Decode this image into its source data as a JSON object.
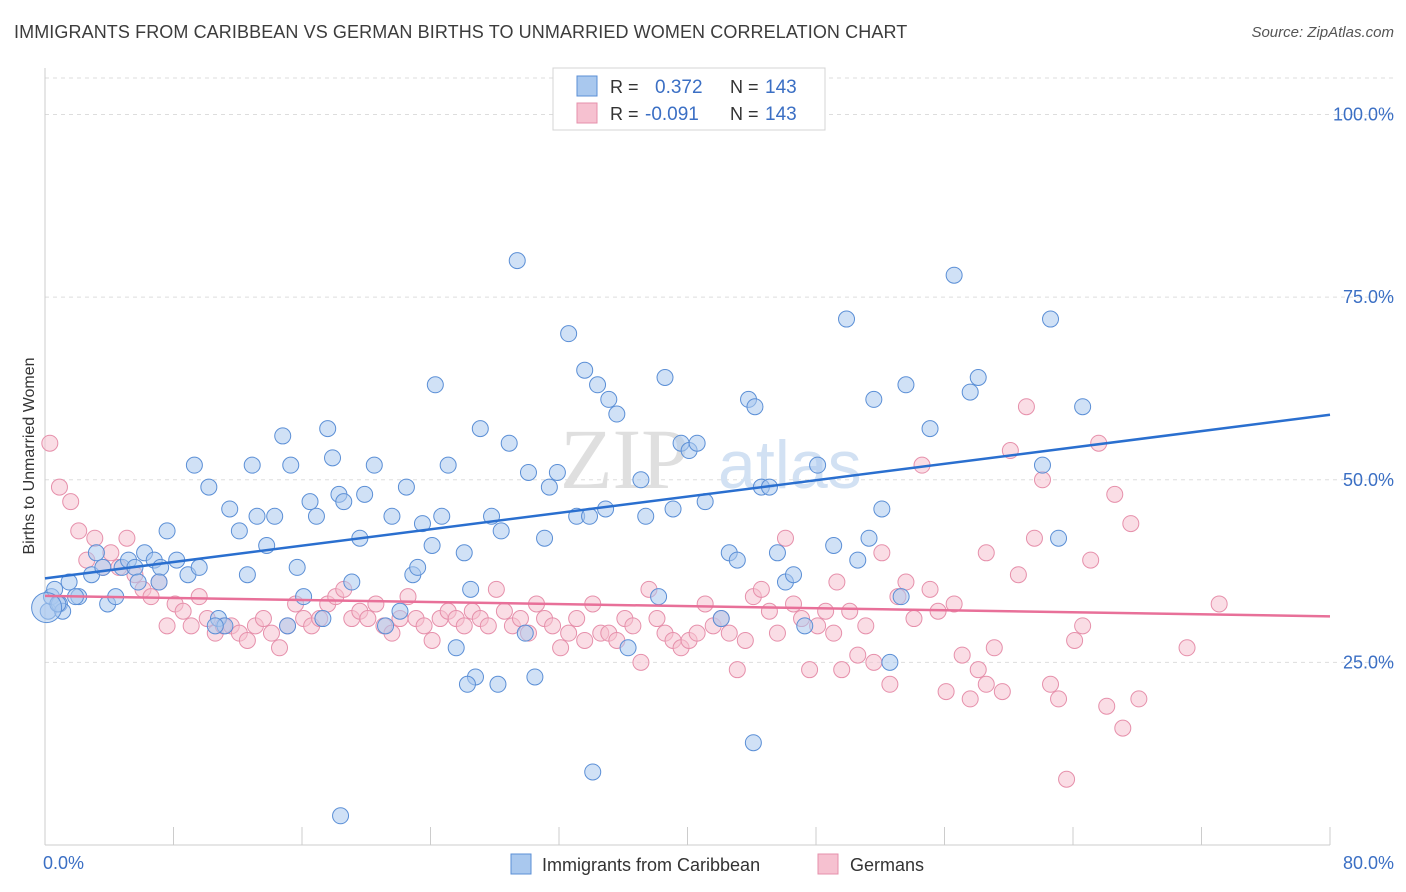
{
  "title": "IMMIGRANTS FROM CARIBBEAN VS GERMAN BIRTHS TO UNMARRIED WOMEN CORRELATION CHART",
  "source": "Source: ZipAtlas.com",
  "watermark": {
    "zip": "ZIP",
    "atlas": "atlas"
  },
  "colors": {
    "blue_fill": "#a9c8ee",
    "blue_stroke": "#5b8fd6",
    "blue_line": "#2a6fcf",
    "blue_text": "#3b6fc4",
    "pink_fill": "#f6c1d0",
    "pink_stroke": "#e690ab",
    "pink_line": "#e87099",
    "grid": "#dddddd",
    "axis": "#cccccc"
  },
  "stats": [
    {
      "series": "Immigrants from Caribbean",
      "r_label": "R =",
      "r_value": "0.372",
      "n_label": "N =",
      "n_value": "143"
    },
    {
      "series": "Germans",
      "r_label": "R =",
      "r_value": "-0.091",
      "n_label": "N =",
      "n_value": "143"
    }
  ],
  "chart_data": {
    "type": "scatter",
    "title": "IMMIGRANTS FROM CARIBBEAN VS GERMAN BIRTHS TO UNMARRIED WOMEN CORRELATION CHART",
    "xlabel": "",
    "ylabel": "Births to Unmarried Women",
    "xlim": [
      0,
      80
    ],
    "ylim": [
      0,
      105
    ],
    "x_tick_labels": [
      "0.0%",
      "80.0%"
    ],
    "y_ticks": [
      25,
      50,
      75,
      100
    ],
    "y_tick_labels": [
      "25.0%",
      "50.0%",
      "75.0%",
      "100.0%"
    ],
    "grid": true,
    "legend_position": "bottom",
    "series": [
      {
        "name": "Immigrants from Caribbean",
        "trend": {
          "x": [
            0,
            80
          ],
          "y": [
            36.5,
            58.9
          ]
        },
        "points": [
          [
            0.2,
            32
          ],
          [
            0.4,
            34
          ],
          [
            0.6,
            35
          ],
          [
            0.9,
            33
          ],
          [
            1.1,
            32
          ],
          [
            1.5,
            36
          ],
          [
            2.1,
            34
          ],
          [
            2.9,
            37
          ],
          [
            3.2,
            40
          ],
          [
            3.9,
            33
          ],
          [
            4.4,
            34
          ],
          [
            4.8,
            38
          ],
          [
            5.2,
            39
          ],
          [
            5.6,
            38
          ],
          [
            5.8,
            36
          ],
          [
            6.2,
            40
          ],
          [
            6.8,
            39
          ],
          [
            7.2,
            38
          ],
          [
            7.6,
            43
          ],
          [
            8.2,
            39
          ],
          [
            8.9,
            37
          ],
          [
            9.3,
            52
          ],
          [
            9.6,
            38
          ],
          [
            10.2,
            49
          ],
          [
            10.8,
            31
          ],
          [
            11.2,
            30
          ],
          [
            11.5,
            46
          ],
          [
            12.1,
            43
          ],
          [
            12.6,
            37
          ],
          [
            12.9,
            52
          ],
          [
            13.2,
            45
          ],
          [
            13.8,
            41
          ],
          [
            14.3,
            45
          ],
          [
            14.8,
            56
          ],
          [
            15.3,
            52
          ],
          [
            15.7,
            38
          ],
          [
            16.1,
            34
          ],
          [
            16.5,
            47
          ],
          [
            16.9,
            45
          ],
          [
            17.3,
            31
          ],
          [
            17.6,
            57
          ],
          [
            17.9,
            53
          ],
          [
            18.3,
            48
          ],
          [
            18.6,
            47
          ],
          [
            19.1,
            36
          ],
          [
            19.6,
            42
          ],
          [
            19.9,
            48
          ],
          [
            20.5,
            52
          ],
          [
            21.2,
            30
          ],
          [
            21.6,
            45
          ],
          [
            22.1,
            32
          ],
          [
            22.5,
            49
          ],
          [
            22.9,
            37
          ],
          [
            23.2,
            38
          ],
          [
            23.5,
            44
          ],
          [
            24.1,
            41
          ],
          [
            24.3,
            63
          ],
          [
            24.7,
            45
          ],
          [
            25.1,
            52
          ],
          [
            25.6,
            27
          ],
          [
            26.1,
            40
          ],
          [
            26.5,
            35
          ],
          [
            26.8,
            23
          ],
          [
            27.1,
            57
          ],
          [
            27.8,
            45
          ],
          [
            28.4,
            43
          ],
          [
            28.9,
            55
          ],
          [
            29.4,
            80
          ],
          [
            29.9,
            29
          ],
          [
            30.1,
            51
          ],
          [
            30.5,
            23
          ],
          [
            31.1,
            42
          ],
          [
            31.4,
            49
          ],
          [
            31.9,
            51
          ],
          [
            32.6,
            70
          ],
          [
            33.1,
            45
          ],
          [
            33.6,
            65
          ],
          [
            33.9,
            45
          ],
          [
            34.4,
            63
          ],
          [
            34.9,
            46
          ],
          [
            35.1,
            61
          ],
          [
            35.6,
            59
          ],
          [
            36.3,
            27
          ],
          [
            37.1,
            50
          ],
          [
            37.4,
            45
          ],
          [
            38.2,
            34
          ],
          [
            38.6,
            64
          ],
          [
            39.1,
            46
          ],
          [
            39.6,
            55
          ],
          [
            40.1,
            54
          ],
          [
            40.6,
            55
          ],
          [
            41.1,
            47
          ],
          [
            42.1,
            31
          ],
          [
            42.6,
            40
          ],
          [
            43.1,
            39
          ],
          [
            43.8,
            61
          ],
          [
            44.2,
            60
          ],
          [
            44.6,
            49
          ],
          [
            45.1,
            49
          ],
          [
            45.6,
            40
          ],
          [
            46.1,
            36
          ],
          [
            46.6,
            37
          ],
          [
            47.3,
            30
          ],
          [
            48.1,
            52
          ],
          [
            49.1,
            41
          ],
          [
            49.9,
            72
          ],
          [
            50.6,
            39
          ],
          [
            51.3,
            42
          ],
          [
            51.6,
            61
          ],
          [
            52.1,
            46
          ],
          [
            52.6,
            25
          ],
          [
            53.3,
            34
          ],
          [
            53.6,
            63
          ],
          [
            55.1,
            57
          ],
          [
            56.6,
            78
          ],
          [
            57.6,
            62
          ],
          [
            58.1,
            64
          ],
          [
            62.1,
            52
          ],
          [
            62.6,
            72
          ],
          [
            63.1,
            42
          ],
          [
            64.6,
            60
          ],
          [
            44.1,
            14
          ],
          [
            34.1,
            10
          ],
          [
            28.2,
            22
          ],
          [
            26.3,
            22
          ],
          [
            18.4,
            4
          ],
          [
            15.1,
            30
          ],
          [
            10.6,
            30
          ],
          [
            7.1,
            36
          ],
          [
            3.6,
            38
          ],
          [
            1.9,
            34
          ],
          [
            0.8,
            33
          ]
        ]
      },
      {
        "name": "Germans",
        "trend": {
          "x": [
            0,
            80
          ],
          "y": [
            34.1,
            31.3
          ]
        },
        "points": [
          [
            0.3,
            55
          ],
          [
            0.9,
            49
          ],
          [
            1.6,
            47
          ],
          [
            2.1,
            43
          ],
          [
            2.6,
            39
          ],
          [
            3.1,
            42
          ],
          [
            3.6,
            38
          ],
          [
            4.1,
            40
          ],
          [
            4.6,
            38
          ],
          [
            5.1,
            42
          ],
          [
            5.6,
            37
          ],
          [
            6.1,
            35
          ],
          [
            6.6,
            34
          ],
          [
            7.1,
            36
          ],
          [
            7.6,
            30
          ],
          [
            8.1,
            33
          ],
          [
            8.6,
            32
          ],
          [
            9.1,
            30
          ],
          [
            9.6,
            34
          ],
          [
            10.1,
            31
          ],
          [
            10.6,
            29
          ],
          [
            11.1,
            30
          ],
          [
            11.6,
            30
          ],
          [
            12.1,
            29
          ],
          [
            12.6,
            28
          ],
          [
            13.1,
            30
          ],
          [
            13.6,
            31
          ],
          [
            14.1,
            29
          ],
          [
            14.6,
            27
          ],
          [
            15.1,
            30
          ],
          [
            15.6,
            33
          ],
          [
            16.1,
            31
          ],
          [
            16.6,
            30
          ],
          [
            17.1,
            31
          ],
          [
            17.6,
            33
          ],
          [
            18.1,
            34
          ],
          [
            18.6,
            35
          ],
          [
            19.1,
            31
          ],
          [
            19.6,
            32
          ],
          [
            20.1,
            31
          ],
          [
            20.6,
            33
          ],
          [
            21.1,
            30
          ],
          [
            21.6,
            29
          ],
          [
            22.1,
            31
          ],
          [
            22.6,
            34
          ],
          [
            23.1,
            31
          ],
          [
            23.6,
            30
          ],
          [
            24.1,
            28
          ],
          [
            24.6,
            31
          ],
          [
            25.1,
            32
          ],
          [
            25.6,
            31
          ],
          [
            26.1,
            30
          ],
          [
            26.6,
            32
          ],
          [
            27.1,
            31
          ],
          [
            27.6,
            30
          ],
          [
            28.1,
            35
          ],
          [
            28.6,
            32
          ],
          [
            29.1,
            30
          ],
          [
            29.6,
            31
          ],
          [
            30.1,
            29
          ],
          [
            30.6,
            33
          ],
          [
            31.1,
            31
          ],
          [
            31.6,
            30
          ],
          [
            32.1,
            27
          ],
          [
            32.6,
            29
          ],
          [
            33.1,
            31
          ],
          [
            33.6,
            28
          ],
          [
            34.1,
            33
          ],
          [
            34.6,
            29
          ],
          [
            35.1,
            29
          ],
          [
            35.6,
            28
          ],
          [
            36.1,
            31
          ],
          [
            36.6,
            30
          ],
          [
            37.1,
            25
          ],
          [
            37.6,
            35
          ],
          [
            38.1,
            31
          ],
          [
            38.6,
            29
          ],
          [
            39.1,
            28
          ],
          [
            39.6,
            27
          ],
          [
            40.1,
            28
          ],
          [
            40.6,
            29
          ],
          [
            41.1,
            33
          ],
          [
            41.6,
            30
          ],
          [
            42.1,
            31
          ],
          [
            42.6,
            29
          ],
          [
            43.1,
            24
          ],
          [
            43.6,
            28
          ],
          [
            44.1,
            34
          ],
          [
            44.6,
            35
          ],
          [
            45.1,
            32
          ],
          [
            45.6,
            29
          ],
          [
            46.1,
            42
          ],
          [
            46.6,
            33
          ],
          [
            47.1,
            31
          ],
          [
            47.6,
            24
          ],
          [
            48.1,
            30
          ],
          [
            48.6,
            32
          ],
          [
            49.1,
            29
          ],
          [
            49.6,
            24
          ],
          [
            50.1,
            32
          ],
          [
            50.6,
            26
          ],
          [
            51.1,
            30
          ],
          [
            51.6,
            25
          ],
          [
            52.1,
            40
          ],
          [
            52.6,
            22
          ],
          [
            53.1,
            34
          ],
          [
            53.6,
            36
          ],
          [
            54.1,
            31
          ],
          [
            54.6,
            52
          ],
          [
            55.1,
            35
          ],
          [
            55.6,
            32
          ],
          [
            56.1,
            21
          ],
          [
            56.6,
            33
          ],
          [
            57.1,
            26
          ],
          [
            57.6,
            20
          ],
          [
            58.1,
            24
          ],
          [
            58.6,
            22
          ],
          [
            59.1,
            27
          ],
          [
            59.6,
            21
          ],
          [
            60.1,
            54
          ],
          [
            60.6,
            37
          ],
          [
            61.1,
            60
          ],
          [
            61.6,
            42
          ],
          [
            62.1,
            50
          ],
          [
            62.6,
            22
          ],
          [
            63.1,
            20
          ],
          [
            63.6,
            9
          ],
          [
            64.1,
            28
          ],
          [
            64.6,
            30
          ],
          [
            65.1,
            39
          ],
          [
            65.6,
            55
          ],
          [
            66.1,
            19
          ],
          [
            66.6,
            48
          ],
          [
            67.1,
            16
          ],
          [
            67.6,
            44
          ],
          [
            68.1,
            20
          ],
          [
            71.1,
            27
          ],
          [
            73.1,
            33
          ],
          [
            49.3,
            36
          ],
          [
            58.6,
            40
          ]
        ]
      }
    ]
  }
}
